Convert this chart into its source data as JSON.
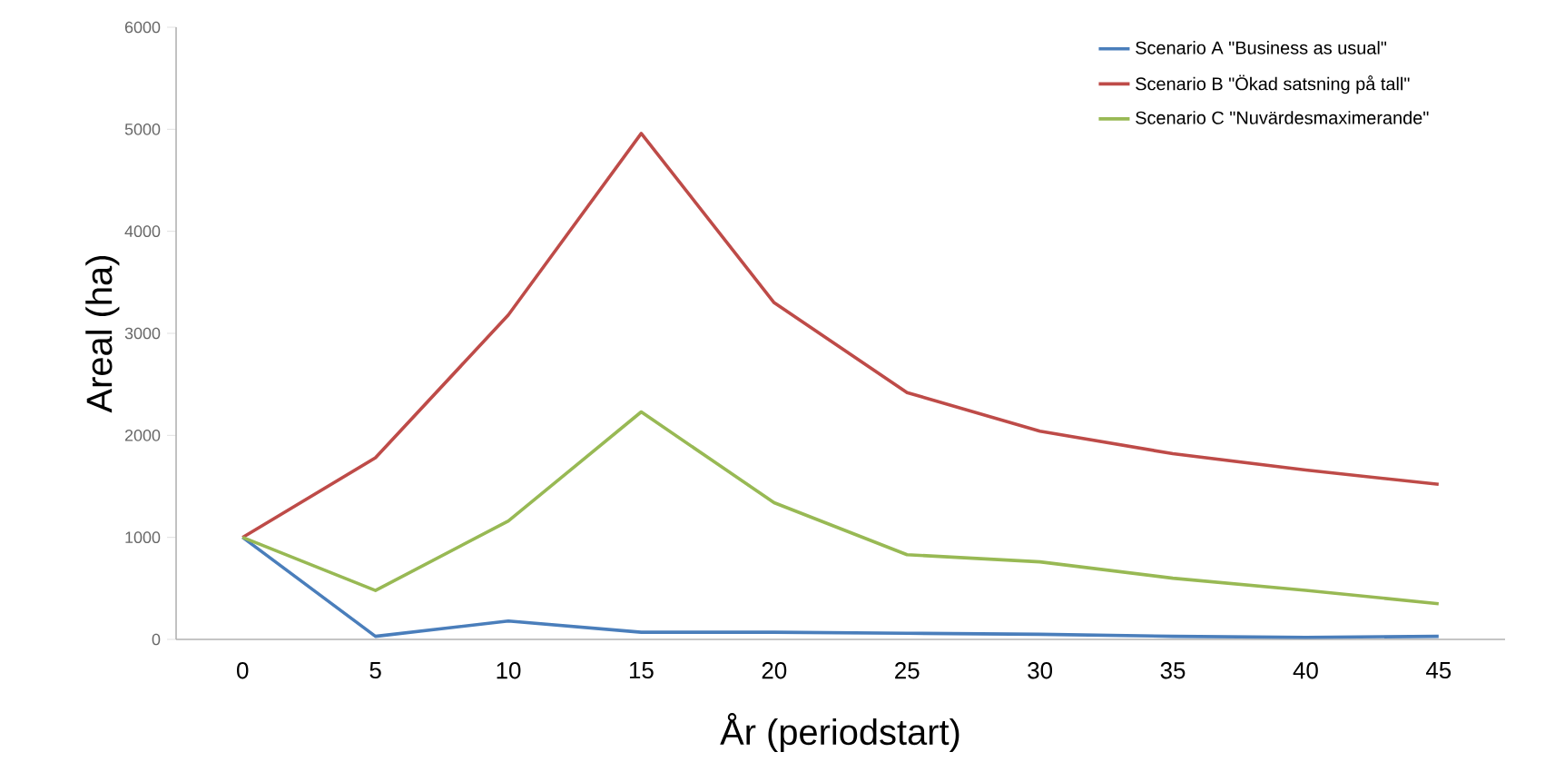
{
  "chart_data": {
    "type": "line",
    "xlabel": "År (periodstart)",
    "ylabel": "Areal (ha)",
    "categories": [
      "0",
      "5",
      "10",
      "15",
      "20",
      "25",
      "30",
      "35",
      "40",
      "45"
    ],
    "ylim": [
      0,
      6000
    ],
    "yticks": [
      0,
      1000,
      2000,
      3000,
      4000,
      5000,
      6000
    ],
    "grid": false,
    "legend": "top right",
    "marker": "none",
    "line_style": "solid",
    "series": [
      {
        "name": "Scenario A  \"Business as usual\"",
        "color": "#4a7ebb",
        "values": [
          1000,
          30,
          180,
          70,
          70,
          60,
          50,
          30,
          20,
          30
        ]
      },
      {
        "name": "Scenario B \"Ökad satsning på tall\"",
        "color": "#be4b48",
        "values": [
          1000,
          1780,
          3180,
          4960,
          3300,
          2420,
          2040,
          1820,
          1660,
          1520
        ]
      },
      {
        "name": "Scenario C \"Nuvärdesmaximerande\"",
        "color": "#98b954",
        "values": [
          1000,
          480,
          1160,
          2230,
          1340,
          830,
          760,
          600,
          480,
          350
        ]
      }
    ]
  }
}
